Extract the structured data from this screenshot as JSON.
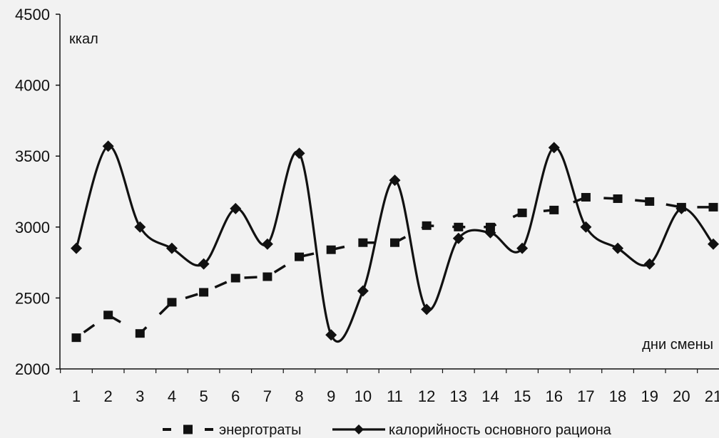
{
  "chart_data": {
    "type": "line",
    "title": "",
    "xlabel": "дни смены",
    "ylabel": "ккал",
    "categories": [
      "1",
      "2",
      "3",
      "4",
      "5",
      "6",
      "7",
      "8",
      "9",
      "10",
      "11",
      "12",
      "13",
      "14",
      "15",
      "16",
      "17",
      "18",
      "19",
      "20",
      "21"
    ],
    "ylim": [
      2000,
      4500
    ],
    "yticks": [
      "2000",
      "2500",
      "3000",
      "3500",
      "4000",
      "4500"
    ],
    "grid": false,
    "legend_position": "bottom",
    "series": [
      {
        "name": "энерготраты",
        "style": "dashed",
        "marker": "square",
        "color": "#111111",
        "values": [
          2220,
          2380,
          2250,
          2470,
          2540,
          2640,
          2650,
          2790,
          2840,
          2890,
          2890,
          3010,
          3000,
          3000,
          3100,
          3120,
          3210,
          3200,
          3180,
          3140,
          3140
        ]
      },
      {
        "name": "калорийность основного рациона",
        "style": "solid-smooth",
        "marker": "diamond",
        "color": "#111111",
        "values": [
          2850,
          3570,
          3000,
          2850,
          2740,
          3130,
          2880,
          3520,
          2240,
          2550,
          3330,
          2420,
          2920,
          2960,
          2850,
          3560,
          3000,
          2850,
          2740,
          3130,
          2880
        ]
      }
    ]
  }
}
